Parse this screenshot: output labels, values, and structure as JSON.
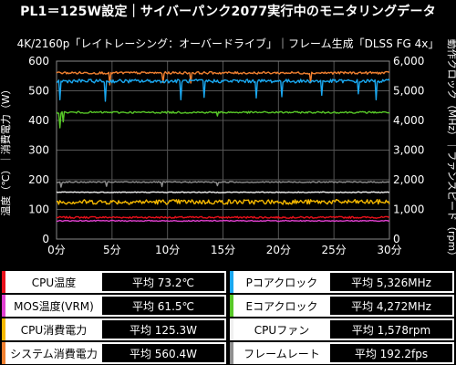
{
  "header": {
    "title": "PL1＝125W設定｜サイバーパンク2077実行中のモニタリングデータ",
    "subtitle": "4K/2160p「レイトレーシング：オーバードライブ」｜フレーム生成「DLSS FG 4x」"
  },
  "colors": {
    "background": "#000000",
    "grid": "#555555",
    "plot_bg": "#000000"
  },
  "chart_data": {
    "type": "line",
    "x_range": [
      0,
      30
    ],
    "x_ticks": [
      "0分",
      "5分",
      "10分",
      "15分",
      "20分",
      "25分",
      "30分"
    ],
    "y_left_label": "温度（℃）｜消費電力（W）",
    "y_left_range": [
      0,
      600
    ],
    "y_left_ticks": [
      "0",
      "100",
      "200",
      "300",
      "400",
      "500",
      "600"
    ],
    "y_right_label": "動作クロック（MHz）｜ファンスピード（rpm）",
    "y_right_range": [
      0,
      6000
    ],
    "y_right_ticks": [
      "0",
      "1,000",
      "2,000",
      "3,000",
      "4,000",
      "5,000",
      "6,000"
    ],
    "grid": true,
    "series": [
      {
        "name": "CPU温度",
        "axis": "left",
        "color": "#e8101a",
        "avg": 73.2,
        "noise": 3,
        "dips": []
      },
      {
        "name": "MOS温度(VRM)",
        "axis": "left",
        "color": "#e040d0",
        "avg": 61.5,
        "noise": 1.5,
        "dips": []
      },
      {
        "name": "CPU消費電力",
        "axis": "left",
        "color": "#f5b800",
        "avg": 125.3,
        "noise": 8,
        "dips": []
      },
      {
        "name": "システム消費電力",
        "axis": "left",
        "color": "#f08030",
        "avg": 560.4,
        "noise": 4,
        "dips": [
          [
            4.8,
            520
          ],
          [
            9.6,
            528
          ],
          [
            12.1,
            526
          ],
          [
            22.9,
            527
          ]
        ]
      },
      {
        "name": "Pコアクロック",
        "axis": "right",
        "color": "#1aa8f0",
        "avg": 5326,
        "noise": 60,
        "dips": [
          [
            0.3,
            4700
          ],
          [
            4.4,
            4650
          ],
          [
            11.2,
            4700
          ],
          [
            13.3,
            4780
          ],
          [
            18.0,
            4760
          ],
          [
            20.3,
            4800
          ],
          [
            23.9,
            4850
          ],
          [
            27.2,
            4900
          ],
          [
            28.8,
            4700
          ]
        ]
      },
      {
        "name": "Eコアクロック",
        "axis": "right",
        "color": "#58c828",
        "avg": 4272,
        "noise": 30,
        "dips": [
          [
            0.3,
            3750
          ],
          [
            0.6,
            3950
          ],
          [
            14.5,
            4150
          ]
        ]
      },
      {
        "name": "CPUファン",
        "axis": "right",
        "color": "#f0f0f0",
        "avg": 1578,
        "noise": 15,
        "dips": []
      },
      {
        "name": "フレームレート",
        "axis": "left",
        "color": "#909090",
        "avg": 192.2,
        "noise": 2,
        "dips": [
          [
            0.4,
            175
          ],
          [
            4.5,
            178
          ],
          [
            9.5,
            177
          ],
          [
            14.5,
            180
          ]
        ]
      }
    ]
  },
  "legend": [
    {
      "label": "CPU温度",
      "value": "平均 73.2℃",
      "color": "#e8101a"
    },
    {
      "label": "Pコアクロック",
      "value": "平均 5,326MHz",
      "color": "#1aa8f0"
    },
    {
      "label": "MOS温度(VRM)",
      "value": "平均 61.5℃",
      "color": "#e040d0"
    },
    {
      "label": "Eコアクロック",
      "value": "平均 4,272MHz",
      "color": "#58c828"
    },
    {
      "label": "CPU消費電力",
      "value": "平均 125.3W",
      "color": "#f5b800"
    },
    {
      "label": "CPUファン",
      "value": "平均 1,578rpm",
      "color": "#f0f0f0"
    },
    {
      "label": "システム消費電力",
      "value": "平均 560.4W",
      "color": "#f08030"
    },
    {
      "label": "フレームレート",
      "value": "平均 192.2fps",
      "color": "#909090"
    }
  ]
}
